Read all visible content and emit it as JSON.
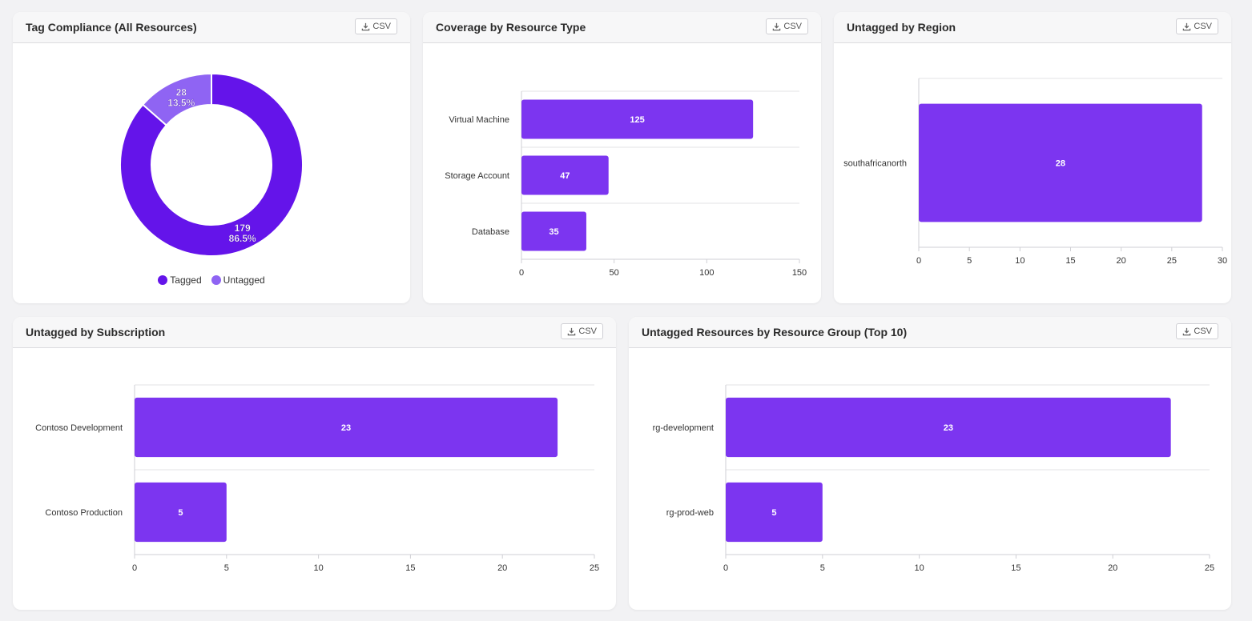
{
  "colors": {
    "bar": "#7c35f0",
    "tagged": "#6414ea",
    "untagged": "#8f64f3",
    "grid": "#e3e3e6"
  },
  "csv_label": "CSV",
  "panels": [
    {
      "title": "Tag Compliance (All Resources)"
    },
    {
      "title": "Coverage by Resource Type"
    },
    {
      "title": "Untagged by Region"
    },
    {
      "title": "Untagged by Subscription"
    },
    {
      "title": "Untagged Resources by Resource Group (Top 10)"
    }
  ],
  "chart_data": [
    {
      "type": "pie",
      "title": "Tag Compliance (All Resources)",
      "categories": [
        "Tagged",
        "Untagged"
      ],
      "values": [
        179,
        28
      ],
      "percent_labels": [
        "86.5%",
        "13.5%"
      ],
      "legend": [
        "Tagged",
        "Untagged"
      ],
      "legend_position": "bottom"
    },
    {
      "type": "bar",
      "orientation": "horizontal",
      "title": "Coverage by Resource Type",
      "categories": [
        "Virtual Machine",
        "Storage Account",
        "Database"
      ],
      "values": [
        125,
        47,
        35
      ],
      "xlim": [
        0,
        150
      ],
      "xticks": [
        "0",
        "50",
        "100",
        "150"
      ]
    },
    {
      "type": "bar",
      "orientation": "horizontal",
      "title": "Untagged by Region",
      "categories": [
        "southafricanorth"
      ],
      "values": [
        28
      ],
      "xlim": [
        0,
        30
      ],
      "xticks": [
        "0",
        "5",
        "10",
        "15",
        "20",
        "25",
        "30"
      ]
    },
    {
      "type": "bar",
      "orientation": "horizontal",
      "title": "Untagged by Subscription",
      "categories": [
        "Contoso Development",
        "Contoso Production"
      ],
      "values": [
        23,
        5
      ],
      "xlim": [
        0,
        25
      ],
      "xticks": [
        "0",
        "5",
        "10",
        "15",
        "20",
        "25"
      ]
    },
    {
      "type": "bar",
      "orientation": "horizontal",
      "title": "Untagged Resources by Resource Group (Top 10)",
      "categories": [
        "rg-development",
        "rg-prod-web"
      ],
      "values": [
        23,
        5
      ],
      "xlim": [
        0,
        25
      ],
      "xticks": [
        "0",
        "5",
        "10",
        "15",
        "20",
        "25"
      ]
    }
  ]
}
